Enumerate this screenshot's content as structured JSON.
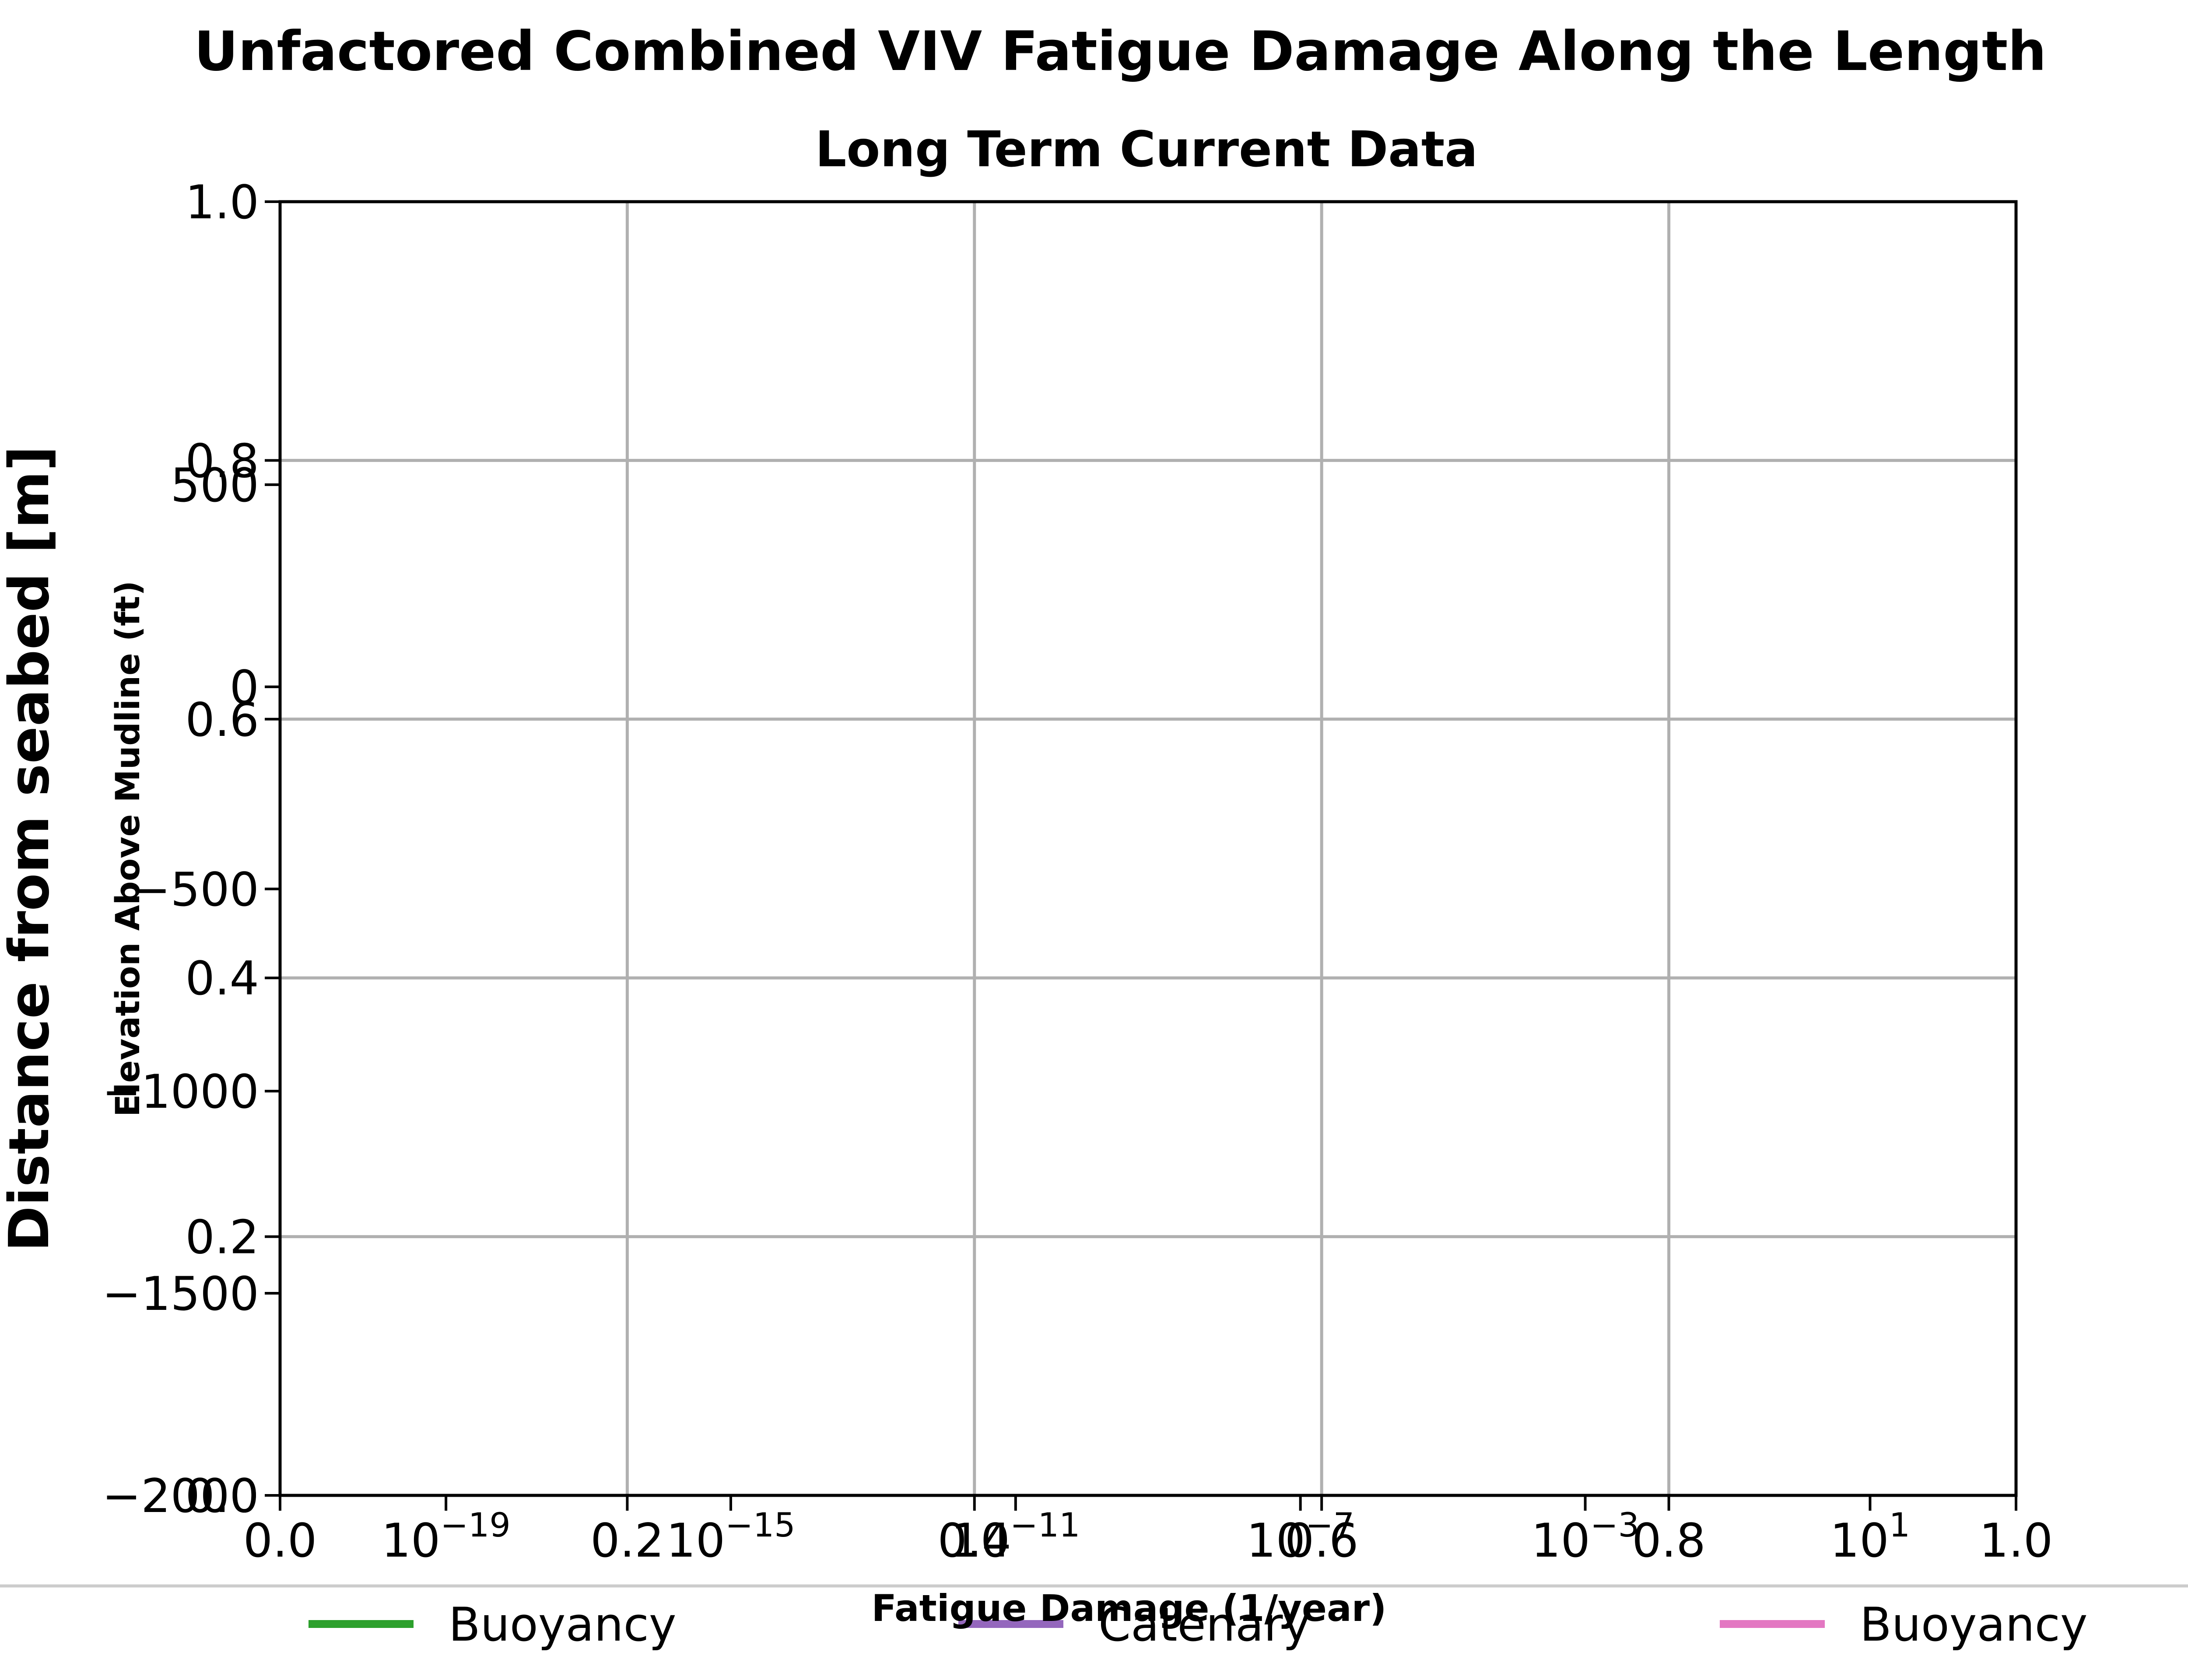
{
  "chart_data": {
    "type": "line",
    "title": "Unfactored Combined VIV Fatigue Damage Along the Length",
    "subtitle": "Long Term Current Data",
    "xlabel": "Fatigue Damage (1/year)",
    "ylabel_left": "Distance from seabed [m]",
    "ylabel_inner": "Elevation Above Mudline (ft)",
    "grid": true,
    "primary_axes": {
      "xlim": [
        0.0,
        1.0
      ],
      "ylim": [
        0.0,
        1.0
      ],
      "x_ticks": [
        "0.0",
        "0.2",
        "0.4",
        "0.6",
        "0.8",
        "1.0"
      ],
      "y_ticks": [
        "0.0",
        "0.2",
        "0.4",
        "0.6",
        "0.8",
        "1.0"
      ]
    },
    "log_axes": {
      "xscale": "log",
      "x_ticks": [
        {
          "base": "10",
          "exp": "−19",
          "value": 1e-19
        },
        {
          "base": "10",
          "exp": "−15",
          "value": 1e-15
        },
        {
          "base": "10",
          "exp": "−11",
          "value": 1e-11
        },
        {
          "base": "10",
          "exp": "−7",
          "value": 1e-07
        },
        {
          "base": "10",
          "exp": "−3",
          "value": 0.001
        },
        {
          "base": "10",
          "exp": "1",
          "value": 10
        }
      ],
      "xlim_log10": [
        -21.33,
        3.05
      ],
      "ylim": [
        -2000,
        1200
      ],
      "y_ticks": [
        {
          "label": "500",
          "value": 500
        },
        {
          "label": "0",
          "value": 0
        },
        {
          "label": "−500",
          "value": -500
        },
        {
          "label": "−1000",
          "value": -1000
        },
        {
          "label": "−1500",
          "value": -1500
        },
        {
          "label": "−2000",
          "value": -2000
        }
      ]
    },
    "legend": {
      "placement": "bottom",
      "entries": [
        {
          "label": "Buoyancy",
          "color": "#2ca02c"
        },
        {
          "label": "Catenary",
          "color": "#9467bd"
        },
        {
          "label": "Buoyancy",
          "color": "#e377c2"
        },
        {
          "label": "",
          "color": "#7f7f7f"
        }
      ]
    },
    "series": []
  }
}
